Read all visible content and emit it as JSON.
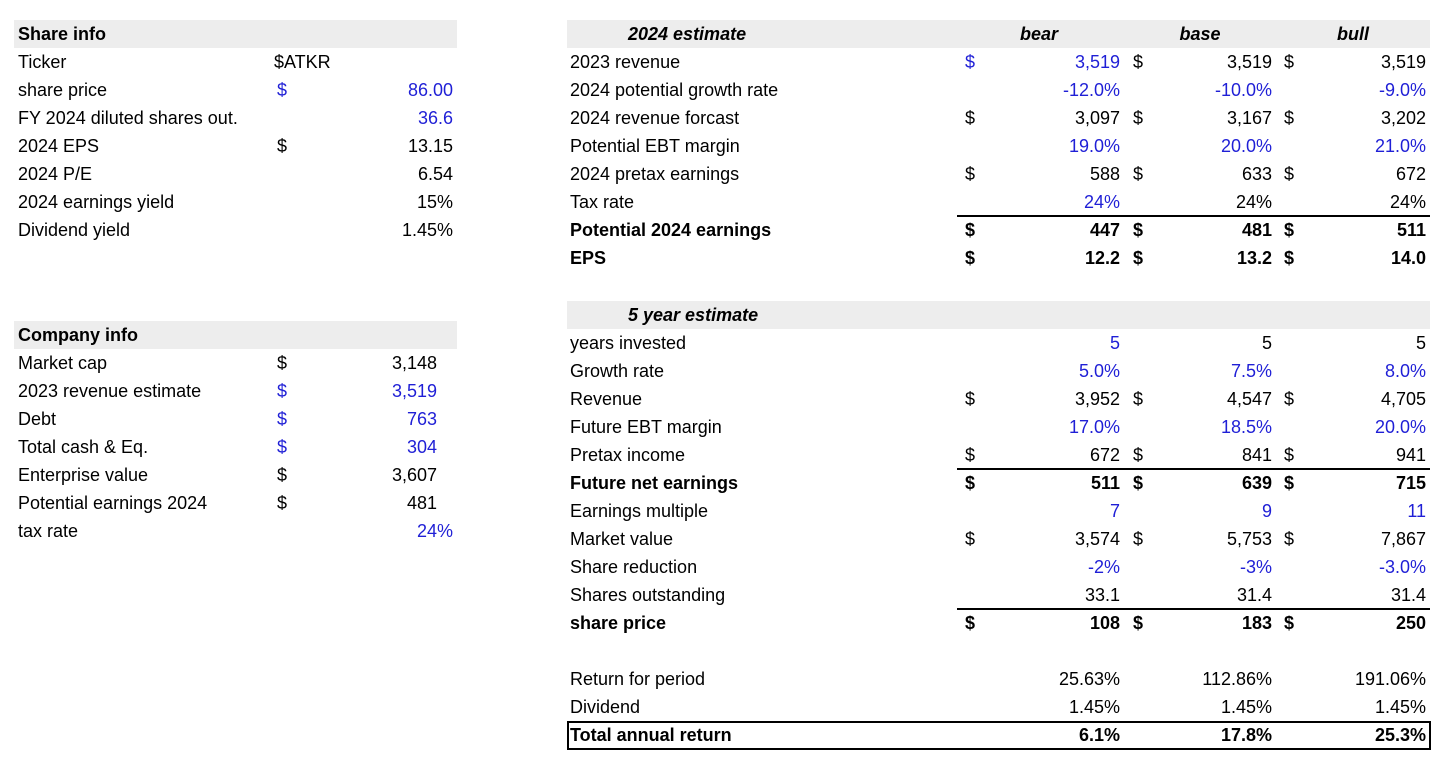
{
  "share_info": {
    "title": "Share info",
    "rows": [
      {
        "label": "Ticker",
        "sym": "$ATKR",
        "value": "",
        "blue": false
      },
      {
        "label": "share price",
        "sym": "$",
        "value": "86.00",
        "blue": true
      },
      {
        "label": "FY 2024 diluted shares out.",
        "sym": "",
        "value": "36.6",
        "blue": true
      },
      {
        "label": "2024 EPS",
        "sym": "$",
        "value": "13.15",
        "blue": false
      },
      {
        "label": "2024 P/E",
        "sym": "",
        "value": "6.54",
        "blue": false
      },
      {
        "label": "2024 earnings yield",
        "sym": "",
        "value": "15%",
        "blue": false
      },
      {
        "label": "Dividend yield",
        "sym": "",
        "value": "1.45%",
        "blue": false
      }
    ]
  },
  "company_info": {
    "title": "Company info",
    "rows": [
      {
        "label": "Market cap",
        "sym": "$",
        "value": "3,148",
        "blue": false
      },
      {
        "label": "2023 revenue estimate",
        "sym": "$",
        "value": "3,519",
        "blue": true
      },
      {
        "label": "Debt",
        "sym": "$",
        "value": "763",
        "blue": true
      },
      {
        "label": "Total cash & Eq.",
        "sym": "$",
        "value": "304",
        "blue": true
      },
      {
        "label": "Enterprise value",
        "sym": "$",
        "value": "3,607",
        "blue": false
      },
      {
        "label": "Potential earnings 2024",
        "sym": "$",
        "value": "481",
        "blue": false
      },
      {
        "label": "tax rate",
        "sym": "",
        "value": "24%",
        "blue": true
      }
    ]
  },
  "estimate_2024": {
    "title": "2024 estimate",
    "scenarios": [
      "bear",
      "base",
      "bull"
    ],
    "rows": [
      {
        "label": "2023 revenue",
        "bold": false,
        "line_above": false,
        "cells": [
          {
            "sym": "$",
            "v": "3,519",
            "blue": true
          },
          {
            "sym": "$",
            "v": "3,519",
            "blue": false
          },
          {
            "sym": "$",
            "v": "3,519",
            "blue": false
          }
        ],
        "sym_blue": [
          true,
          false,
          false
        ]
      },
      {
        "label": "2024 potential growth rate",
        "bold": false,
        "line_above": false,
        "cells": [
          {
            "sym": "",
            "v": "-12.0%",
            "blue": true
          },
          {
            "sym": "",
            "v": "-10.0%",
            "blue": true
          },
          {
            "sym": "",
            "v": "-9.0%",
            "blue": true
          }
        ]
      },
      {
        "label": "2024 revenue forcast",
        "bold": false,
        "line_above": false,
        "cells": [
          {
            "sym": "$",
            "v": "3,097",
            "blue": false
          },
          {
            "sym": "$",
            "v": "3,167",
            "blue": false
          },
          {
            "sym": "$",
            "v": "3,202",
            "blue": false
          }
        ]
      },
      {
        "label": "Potential  EBT margin",
        "bold": false,
        "line_above": false,
        "cells": [
          {
            "sym": "",
            "v": "19.0%",
            "blue": true
          },
          {
            "sym": "",
            "v": "20.0%",
            "blue": true
          },
          {
            "sym": "",
            "v": "21.0%",
            "blue": true
          }
        ]
      },
      {
        "label": "2024 pretax earnings",
        "bold": false,
        "line_above": false,
        "cells": [
          {
            "sym": "$",
            "v": "588",
            "blue": false
          },
          {
            "sym": "$",
            "v": "633",
            "blue": false
          },
          {
            "sym": "$",
            "v": "672",
            "blue": false
          }
        ]
      },
      {
        "label": "Tax rate",
        "bold": false,
        "line_above": false,
        "cells": [
          {
            "sym": "",
            "v": "24%",
            "blue": true
          },
          {
            "sym": "",
            "v": "24%",
            "blue": false
          },
          {
            "sym": "",
            "v": "24%",
            "blue": false
          }
        ]
      },
      {
        "label": "Potential 2024 earnings",
        "bold": true,
        "line_above": true,
        "cells": [
          {
            "sym": "$",
            "v": "447",
            "blue": false
          },
          {
            "sym": "$",
            "v": "481",
            "blue": false
          },
          {
            "sym": "$",
            "v": "511",
            "blue": false
          }
        ]
      },
      {
        "label": "EPS",
        "bold": true,
        "line_above": false,
        "cells": [
          {
            "sym": "$",
            "v": "12.2",
            "blue": false
          },
          {
            "sym": "$",
            "v": "13.2",
            "blue": false
          },
          {
            "sym": "$",
            "v": "14.0",
            "blue": false
          }
        ]
      }
    ]
  },
  "estimate_5yr": {
    "title": "5 year estimate",
    "rows": [
      {
        "label": "years invested",
        "bold": false,
        "line_above": false,
        "cells": [
          {
            "sym": "",
            "v": "5",
            "blue": true
          },
          {
            "sym": "",
            "v": "5",
            "blue": false
          },
          {
            "sym": "",
            "v": "5",
            "blue": false
          }
        ]
      },
      {
        "label": "Growth rate",
        "bold": false,
        "line_above": false,
        "cells": [
          {
            "sym": "",
            "v": "5.0%",
            "blue": true
          },
          {
            "sym": "",
            "v": "7.5%",
            "blue": true
          },
          {
            "sym": "",
            "v": "8.0%",
            "blue": true
          }
        ]
      },
      {
        "label": "Revenue",
        "bold": false,
        "line_above": false,
        "cells": [
          {
            "sym": "$",
            "v": "3,952",
            "blue": false
          },
          {
            "sym": "$",
            "v": "4,547",
            "blue": false
          },
          {
            "sym": "$",
            "v": "4,705",
            "blue": false
          }
        ]
      },
      {
        "label": "Future EBT margin",
        "bold": false,
        "line_above": false,
        "cells": [
          {
            "sym": "",
            "v": "17.0%",
            "blue": true
          },
          {
            "sym": "",
            "v": "18.5%",
            "blue": true
          },
          {
            "sym": "",
            "v": "20.0%",
            "blue": true
          }
        ]
      },
      {
        "label": "Pretax income",
        "bold": false,
        "line_above": false,
        "cells": [
          {
            "sym": "$",
            "v": "672",
            "blue": false
          },
          {
            "sym": "$",
            "v": "841",
            "blue": false
          },
          {
            "sym": "$",
            "v": "941",
            "blue": false
          }
        ]
      },
      {
        "label": "Future net earnings",
        "bold": true,
        "line_above": true,
        "cells": [
          {
            "sym": "$",
            "v": "511",
            "blue": false
          },
          {
            "sym": "$",
            "v": "639",
            "blue": false
          },
          {
            "sym": "$",
            "v": "715",
            "blue": false
          }
        ]
      },
      {
        "label": "Earnings multiple",
        "bold": false,
        "line_above": false,
        "cells": [
          {
            "sym": "",
            "v": "7",
            "blue": true
          },
          {
            "sym": "",
            "v": "9",
            "blue": true
          },
          {
            "sym": "",
            "v": "11",
            "blue": true
          }
        ]
      },
      {
        "label": "Market value",
        "bold": false,
        "line_above": false,
        "cells": [
          {
            "sym": "$",
            "v": "3,574",
            "blue": false
          },
          {
            "sym": "$",
            "v": "5,753",
            "blue": false
          },
          {
            "sym": "$",
            "v": "7,867",
            "blue": false
          }
        ]
      },
      {
        "label": "Share reduction",
        "bold": false,
        "line_above": false,
        "cells": [
          {
            "sym": "",
            "v": "-2%",
            "blue": true
          },
          {
            "sym": "",
            "v": "-3%",
            "blue": true
          },
          {
            "sym": "",
            "v": "-3.0%",
            "blue": true
          }
        ]
      },
      {
        "label": "Shares outstanding",
        "bold": false,
        "line_above": false,
        "cells": [
          {
            "sym": "",
            "v": "33.1",
            "blue": false
          },
          {
            "sym": "",
            "v": "31.4",
            "blue": false
          },
          {
            "sym": "",
            "v": "31.4",
            "blue": false
          }
        ]
      },
      {
        "label": "share price",
        "bold": true,
        "line_above": true,
        "cells": [
          {
            "sym": "$",
            "v": "108",
            "blue": false
          },
          {
            "sym": "$",
            "v": "183",
            "blue": false
          },
          {
            "sym": "$",
            "v": "250",
            "blue": false
          }
        ]
      }
    ]
  },
  "returns": {
    "rows": [
      {
        "label": "Return for period",
        "bold": false,
        "cells": [
          "25.63%",
          "112.86%",
          "191.06%"
        ]
      },
      {
        "label": "Dividend",
        "bold": false,
        "cells": [
          "1.45%",
          "1.45%",
          "1.45%"
        ]
      },
      {
        "label": "Total annual return",
        "bold": true,
        "cells": [
          "6.1%",
          "17.8%",
          "25.3%"
        ]
      }
    ]
  },
  "colors": {
    "input_blue": "#1f1fd6",
    "header_gray": "#ededed"
  }
}
